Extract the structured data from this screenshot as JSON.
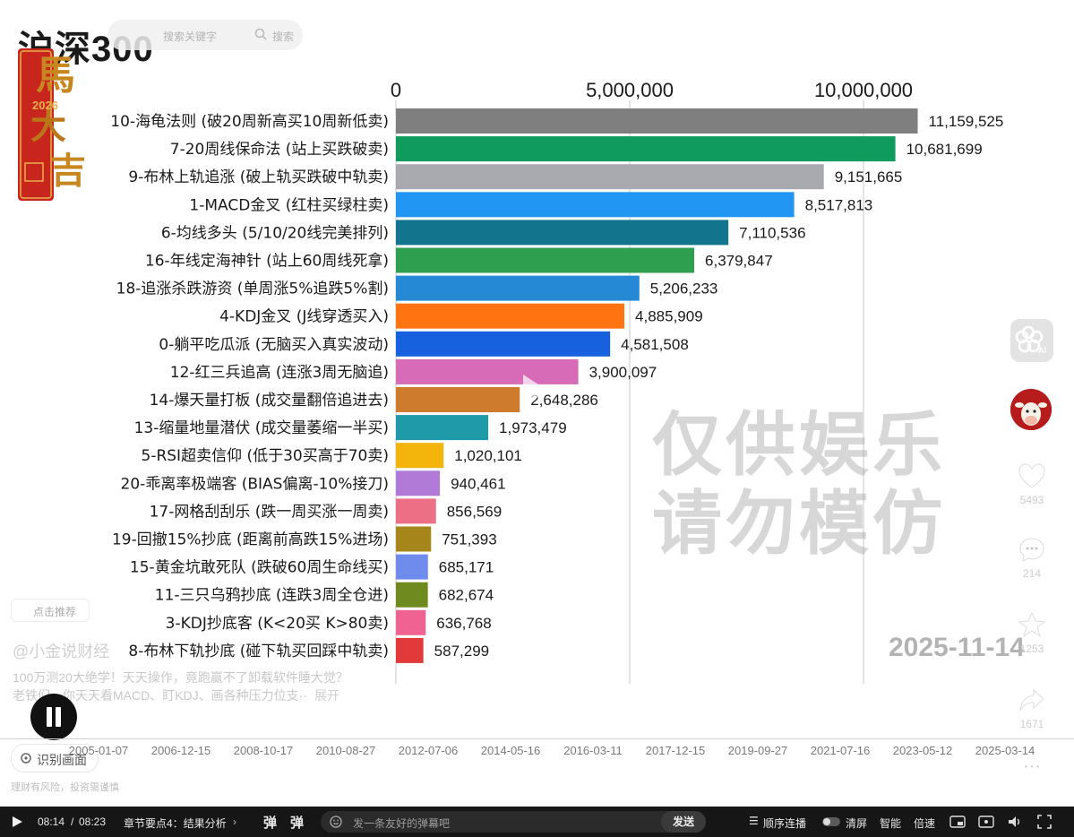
{
  "chart_data": {
    "type": "bar",
    "orientation": "horizontal",
    "title": "沪深300",
    "xlim": [
      0,
      12000000
    ],
    "x_ticks": [
      "0",
      "5,000,000",
      "10,000,000"
    ],
    "x_tick_values": [
      0,
      5000000,
      10000000
    ],
    "grid": true,
    "categories": [
      "10-海龟法则 (破20周新高买10周新低卖)",
      "7-20周线保命法 (站上买跌破卖)",
      "9-布林上轨追涨 (破上轨买跌破中轨卖)",
      "1-MACD金叉 (红柱买绿柱卖)",
      "6-均线多头 (5/10/20线完美排列)",
      "16-年线定海神针 (站上60周线死拿)",
      "18-追涨杀跌游资 (单周涨5%追跌5%割)",
      "4-KDJ金叉 (J线穿透买入)",
      "0-躺平吃瓜派 (无脑买入真实波动)",
      "12-红三兵追高 (连涨3周无脑追)",
      "14-爆天量打板 (成交量翻倍追进去)",
      "13-缩量地量潜伏 (成交量萎缩一半买)",
      "5-RSI超卖信仰 (低于30买高于70卖)",
      "20-乖离率极端客 (BIAS偏离-10%接刀)",
      "17-网格刮刮乐 (跌一周买涨一周卖)",
      "19-回撤15%抄底 (距离前高跌15%进场)",
      "15-黄金坑敢死队 (跌破60周生命线买)",
      "11-三只乌鸦抄底 (连跌3周全仓进)",
      "3-KDJ抄底客 (K<20买 K>80卖)",
      "8-布林下轨抄底 (碰下轨买回踩中轨卖)"
    ],
    "values": [
      11159525,
      10681699,
      9151665,
      8517813,
      7110536,
      6379847,
      5206233,
      4885909,
      4581508,
      3900097,
      2648286,
      1973479,
      1020101,
      940461,
      856569,
      751393,
      685171,
      682674,
      636768,
      587299
    ],
    "value_labels": [
      "11,159,525",
      "10,681,699",
      "9,151,665",
      "8,517,813",
      "7,110,536",
      "6,379,847",
      "5,206,233",
      "4,885,909",
      "4,581,508",
      "3,900,097",
      "2,648,286",
      "1,973,479",
      "1,020,101",
      "940,461",
      "856,569",
      "751,393",
      "685,171",
      "682,674",
      "636,768",
      "587,299"
    ],
    "colors": [
      "#7f7f7f",
      "#0f9a5e",
      "#a9aab0",
      "#2196f3",
      "#13758d",
      "#2e9e4f",
      "#2589d6",
      "#ff7411",
      "#1760de",
      "#d76bb8",
      "#cf7b2e",
      "#1e9aa8",
      "#f3b50c",
      "#b07ad6",
      "#ec6f86",
      "#a6861a",
      "#6f8cec",
      "#6f8a1e",
      "#ef6291",
      "#e23a3a"
    ],
    "date_label": "2025-11-14"
  },
  "overlay": {
    "search_placeholder": "搜索关键字",
    "search_button": "搜索",
    "badge_text": "马年大吉",
    "watermark_line1": "仅供娱乐",
    "watermark_line2": "请勿模仿",
    "side": {
      "ai_label": "AI",
      "likes": "5493",
      "comments": "214",
      "favorites": "1253",
      "shares": "1671",
      "more": "···"
    },
    "hot_tag": "点击推荐",
    "author": "@小金说财经",
    "description_line1": "100万测20大绝学！天天操作，竟跑赢不了卸载软件睡大觉？",
    "description_line2": "老铁们，你天天看MACD、盯KDJ、画各种压力位支··",
    "expand": "展开",
    "recognize_button": "识别画面",
    "risk_notice": "理财有风险，投资需谨慎"
  },
  "timeline_ticks": [
    "2005-01-07",
    "2006-12-15",
    "2008-10-17",
    "2010-08-27",
    "2012-07-06",
    "2014-05-16",
    "2016-03-11",
    "2017-12-15",
    "2019-09-27",
    "2021-07-16",
    "2023-05-12",
    "2025-03-14"
  ],
  "player": {
    "current_time": "08:14",
    "separator": "/",
    "total_time": "08:23",
    "chapter": "章节要点4：结果分析",
    "danmu_placeholder": "发一条友好的弹幕吧",
    "send": "发送",
    "play_order": "顺序连播",
    "clear_screen": "清屏",
    "quality": "智能",
    "speed": "倍速"
  }
}
